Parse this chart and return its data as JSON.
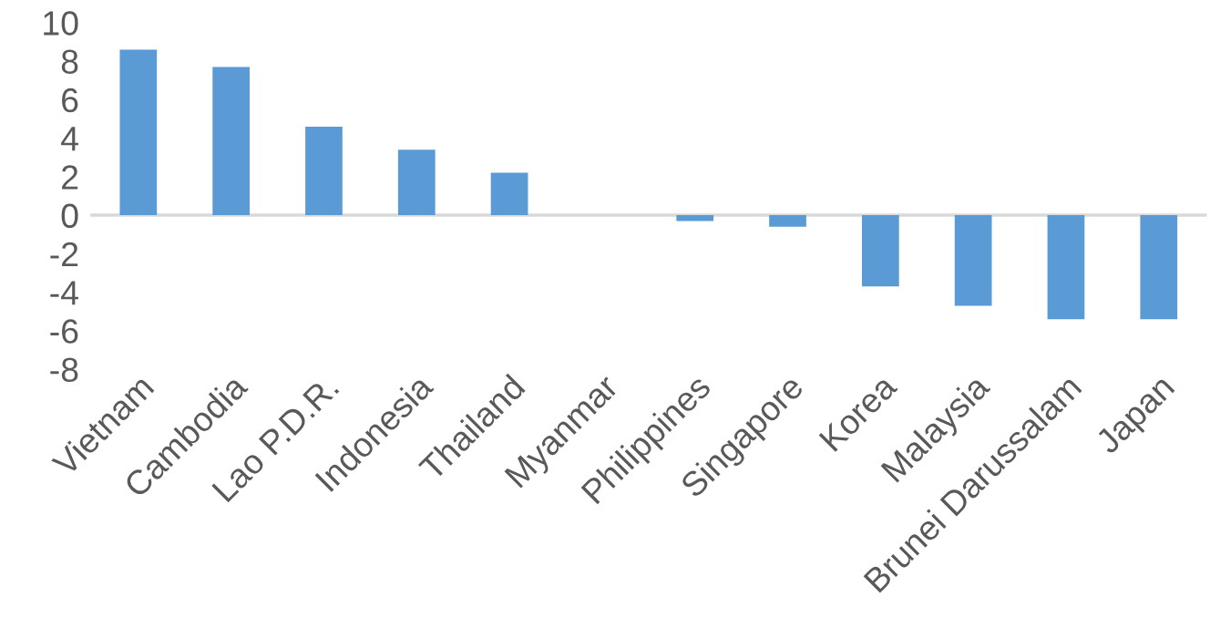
{
  "chart_data": {
    "type": "bar",
    "categories": [
      "Vietnam",
      "Cambodia",
      "Lao P.D.R.",
      "Indonesia",
      "Thailand",
      "Myanmar",
      "Philippines",
      "Singapore",
      "Korea",
      "Malaysia",
      "Brunei Darussalam",
      "Japan"
    ],
    "values": [
      8.6,
      7.7,
      4.6,
      3.4,
      2.2,
      0,
      -0.3,
      -0.6,
      -3.7,
      -4.7,
      -5.4,
      -5.4
    ],
    "color": "#5b9bd5",
    "ylim": [
      -8,
      10
    ],
    "yticks": [
      -8,
      -6,
      -4,
      -2,
      0,
      2,
      4,
      6,
      8,
      10
    ]
  }
}
